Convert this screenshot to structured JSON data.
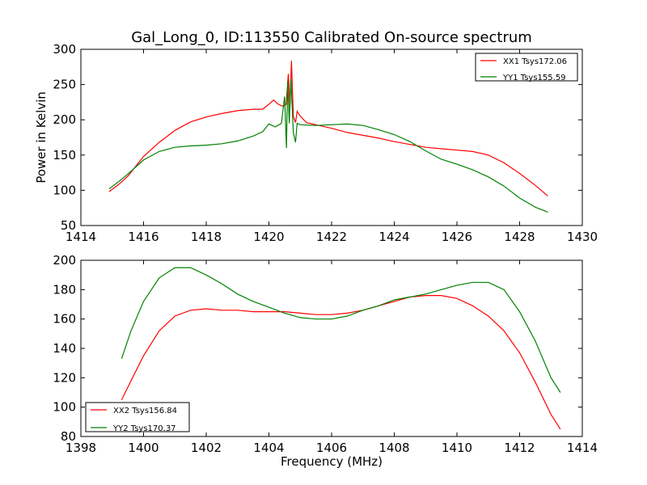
{
  "chart_data": [
    {
      "type": "line",
      "title": "Gal_Long_0, ID:113550 Calibrated On-source spectrum",
      "xlabel": "",
      "ylabel": "Power in Kelvin",
      "xlim": [
        1414,
        1430
      ],
      "ylim": [
        50,
        300
      ],
      "xticks": [
        1414,
        1416,
        1418,
        1420,
        1422,
        1424,
        1426,
        1428,
        1430
      ],
      "yticks": [
        50,
        100,
        150,
        200,
        250,
        300
      ],
      "legend_position": "top-right",
      "series": [
        {
          "name": "XX1 Tsys172.06",
          "color": "#ff0000",
          "points": [
            [
              1414.9,
              98
            ],
            [
              1415.2,
              108
            ],
            [
              1415.5,
              120
            ],
            [
              1416.0,
              148
            ],
            [
              1416.5,
              168
            ],
            [
              1417.0,
              185
            ],
            [
              1417.5,
              197
            ],
            [
              1418.0,
              204
            ],
            [
              1418.5,
              209
            ],
            [
              1419.0,
              213
            ],
            [
              1419.5,
              215
            ],
            [
              1419.8,
              215
            ],
            [
              1420.0,
              222
            ],
            [
              1420.15,
              228
            ],
            [
              1420.3,
              222
            ],
            [
              1420.45,
              219
            ],
            [
              1420.55,
              222
            ],
            [
              1420.62,
              265
            ],
            [
              1420.67,
              218
            ],
            [
              1420.72,
              284
            ],
            [
              1420.78,
              205
            ],
            [
              1420.85,
              196
            ],
            [
              1420.9,
              212
            ],
            [
              1421.0,
              205
            ],
            [
              1421.2,
              196
            ],
            [
              1421.5,
              193
            ],
            [
              1422.0,
              188
            ],
            [
              1422.5,
              182
            ],
            [
              1423.0,
              178
            ],
            [
              1423.5,
              174
            ],
            [
              1424.0,
              169
            ],
            [
              1424.5,
              165
            ],
            [
              1425.0,
              161
            ],
            [
              1425.5,
              159
            ],
            [
              1426.0,
              157
            ],
            [
              1426.5,
              155
            ],
            [
              1427.0,
              150
            ],
            [
              1427.5,
              139
            ],
            [
              1428.0,
              124
            ],
            [
              1428.5,
              107
            ],
            [
              1428.9,
              92
            ]
          ]
        },
        {
          "name": "YY1 Tsys155.59",
          "color": "#008000",
          "points": [
            [
              1414.9,
              102
            ],
            [
              1415.2,
              112
            ],
            [
              1415.5,
              123
            ],
            [
              1416.0,
              143
            ],
            [
              1416.5,
              155
            ],
            [
              1417.0,
              161
            ],
            [
              1417.5,
              163
            ],
            [
              1418.0,
              164
            ],
            [
              1418.5,
              166
            ],
            [
              1419.0,
              170
            ],
            [
              1419.5,
              177
            ],
            [
              1419.8,
              183
            ],
            [
              1420.0,
              194
            ],
            [
              1420.2,
              190
            ],
            [
              1420.4,
              195
            ],
            [
              1420.5,
              233
            ],
            [
              1420.56,
              160
            ],
            [
              1420.6,
              255
            ],
            [
              1420.65,
              195
            ],
            [
              1420.7,
              258
            ],
            [
              1420.78,
              182
            ],
            [
              1420.85,
              168
            ],
            [
              1420.9,
              195
            ],
            [
              1421.0,
              193
            ],
            [
              1421.5,
              192
            ],
            [
              1422.0,
              193
            ],
            [
              1422.5,
              194
            ],
            [
              1423.0,
              192
            ],
            [
              1423.5,
              186
            ],
            [
              1424.0,
              179
            ],
            [
              1424.5,
              169
            ],
            [
              1425.0,
              156
            ],
            [
              1425.5,
              144
            ],
            [
              1426.0,
              137
            ],
            [
              1426.5,
              129
            ],
            [
              1427.0,
              119
            ],
            [
              1427.5,
              106
            ],
            [
              1428.0,
              89
            ],
            [
              1428.5,
              76
            ],
            [
              1428.9,
              69
            ]
          ]
        }
      ]
    },
    {
      "type": "line",
      "title": "",
      "xlabel": "Frequency (MHz)",
      "ylabel": "",
      "xlim": [
        1398,
        1414
      ],
      "ylim": [
        80,
        200
      ],
      "xticks": [
        1398,
        1400,
        1402,
        1404,
        1406,
        1408,
        1410,
        1412,
        1414
      ],
      "yticks": [
        80,
        100,
        120,
        140,
        160,
        180,
        200
      ],
      "legend_position": "bottom-left",
      "series": [
        {
          "name": "XX2 Tsys156.84",
          "color": "#ff0000",
          "points": [
            [
              1399.3,
              105
            ],
            [
              1399.6,
              118
            ],
            [
              1400.0,
              135
            ],
            [
              1400.5,
              152
            ],
            [
              1401.0,
              162
            ],
            [
              1401.5,
              166
            ],
            [
              1402.0,
              167
            ],
            [
              1402.5,
              166
            ],
            [
              1403.0,
              166
            ],
            [
              1403.5,
              165
            ],
            [
              1404.0,
              165
            ],
            [
              1404.5,
              165
            ],
            [
              1405.0,
              164
            ],
            [
              1405.5,
              163
            ],
            [
              1406.0,
              163
            ],
            [
              1406.5,
              164
            ],
            [
              1407.0,
              166
            ],
            [
              1407.5,
              169
            ],
            [
              1408.0,
              172
            ],
            [
              1408.5,
              175
            ],
            [
              1409.0,
              176
            ],
            [
              1409.5,
              176
            ],
            [
              1410.0,
              174
            ],
            [
              1410.5,
              169
            ],
            [
              1411.0,
              162
            ],
            [
              1411.5,
              152
            ],
            [
              1412.0,
              137
            ],
            [
              1412.5,
              117
            ],
            [
              1413.0,
              95
            ],
            [
              1413.3,
              85
            ]
          ]
        },
        {
          "name": "YY2 Tsys170.37",
          "color": "#008000",
          "points": [
            [
              1399.3,
              133
            ],
            [
              1399.6,
              152
            ],
            [
              1400.0,
              172
            ],
            [
              1400.5,
              188
            ],
            [
              1401.0,
              195
            ],
            [
              1401.5,
              195
            ],
            [
              1402.0,
              190
            ],
            [
              1402.5,
              184
            ],
            [
              1403.0,
              177
            ],
            [
              1403.5,
              172
            ],
            [
              1404.0,
              168
            ],
            [
              1404.5,
              164
            ],
            [
              1405.0,
              161
            ],
            [
              1405.5,
              160
            ],
            [
              1406.0,
              160
            ],
            [
              1406.5,
              162
            ],
            [
              1407.0,
              166
            ],
            [
              1407.5,
              169
            ],
            [
              1408.0,
              173
            ],
            [
              1408.5,
              175
            ],
            [
              1409.0,
              177
            ],
            [
              1409.5,
              180
            ],
            [
              1410.0,
              183
            ],
            [
              1410.5,
              185
            ],
            [
              1411.0,
              185
            ],
            [
              1411.5,
              180
            ],
            [
              1412.0,
              165
            ],
            [
              1412.5,
              145
            ],
            [
              1413.0,
              120
            ],
            [
              1413.3,
              110
            ]
          ]
        }
      ]
    }
  ]
}
